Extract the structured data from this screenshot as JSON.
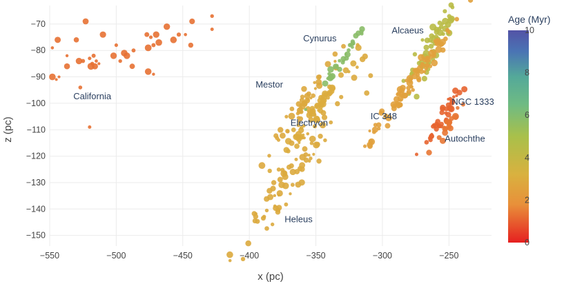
{
  "chart_data": {
    "type": "scatter",
    "title": "",
    "xlabel": "x (pc)",
    "ylabel": "z (pc)",
    "xlim": [
      -550,
      -218
    ],
    "ylim": [
      -154,
      -63
    ],
    "xticks": [
      -550,
      -500,
      -450,
      -400,
      -350,
      -300,
      -250
    ],
    "yticks": [
      -150,
      -140,
      -130,
      -120,
      -110,
      -100,
      -90,
      -80,
      -70
    ],
    "colorbar": {
      "title": "Age (Myr)",
      "range": [
        0,
        10
      ],
      "ticks": [
        0,
        2,
        4,
        6,
        8,
        10
      ],
      "colorscale": [
        "#e62020",
        "#e8903a",
        "#d9b13f",
        "#a9c04a",
        "#54a999",
        "#4a74b4",
        "#5353a6"
      ]
    },
    "groups": [
      {
        "name": "California",
        "age": 1.3,
        "label": "California",
        "label_pos": [
          -518,
          -98.5
        ],
        "points": [
          [
            -548,
            -79
          ],
          [
            -544,
            -76
          ],
          [
            -548,
            -90
          ],
          [
            -543,
            -90
          ],
          [
            -545,
            -91
          ],
          [
            -537,
            -82
          ],
          [
            -537,
            -86
          ],
          [
            -530,
            -76
          ],
          [
            -528,
            -84
          ],
          [
            -523,
            -69
          ],
          [
            -525,
            -84
          ],
          [
            -520,
            -83
          ],
          [
            -518,
            -85
          ],
          [
            -516,
            -86
          ],
          [
            -519,
            -86
          ],
          [
            -515,
            -84
          ],
          [
            -517,
            -82
          ],
          [
            -513,
            -85
          ],
          [
            -527,
            -94
          ],
          [
            -520,
            -109
          ],
          [
            -510,
            -74
          ],
          [
            -500,
            -78
          ],
          [
            -502,
            -82
          ],
          [
            -497,
            -84
          ],
          [
            -492,
            -82
          ],
          [
            -494,
            -81
          ],
          [
            -487,
            -80
          ],
          [
            -488,
            -86
          ],
          [
            -477,
            -74
          ],
          [
            -474,
            -75
          ],
          [
            -470,
            -74
          ],
          [
            -472,
            -78
          ],
          [
            -476,
            -79
          ],
          [
            -468,
            -77
          ],
          [
            -476,
            -88
          ],
          [
            -472,
            -89
          ],
          [
            -457,
            -76
          ],
          [
            -462,
            -71
          ],
          [
            -453,
            -74
          ],
          [
            -448,
            -74
          ],
          [
            -443,
            -69
          ],
          [
            -444,
            -78
          ],
          [
            -428,
            -67
          ],
          [
            -428,
            -72
          ]
        ]
      },
      {
        "name": "Mestor",
        "age": 2.8,
        "label": "Mestor",
        "label_pos": [
          -385,
          -94
        ],
        "points": "cluster:-358,-99,15,6,50"
      },
      {
        "name": "Electryon",
        "age": 3.0,
        "label": "Electryon",
        "label_pos": [
          -355,
          -108.5
        ],
        "points": "cluster:-345,-99,18,5,60"
      },
      {
        "name": "Cynurus",
        "age": 5.8,
        "label": "Cynurus",
        "label_pos": [
          -347,
          -76.5
        ],
        "points": "cluster:-328,-82,12,3,30"
      },
      {
        "name": "Alcaeus",
        "age": 4.4,
        "label": "Alcaeus",
        "label_pos": [
          -281,
          -73.5
        ],
        "points": "cluster:-262,-78,12,9,60"
      },
      {
        "name": "IC 348",
        "age": 2.5,
        "label": "IC 348",
        "label_pos": [
          -299,
          -106
        ],
        "points": "cluster:-282,-95,22,5,90"
      },
      {
        "name": "NGC 1333",
        "age": 1.1,
        "label": "NGC 1333",
        "label_pos": [
          -232,
          -100.5
        ],
        "points": "cluster:-253,-105,8,5,40"
      },
      {
        "name": "Autochthe",
        "age": 1.4,
        "label": "Autochthe",
        "label_pos": [
          -238,
          -114.5
        ],
        "points": "cluster:-250,-108,6,5,20"
      },
      {
        "name": "Heleus",
        "age": 2.9,
        "label": "Heleus",
        "label_pos": [
          -363,
          -145
        ],
        "points": "cluster:-365,-125,28,12,80"
      }
    ]
  }
}
